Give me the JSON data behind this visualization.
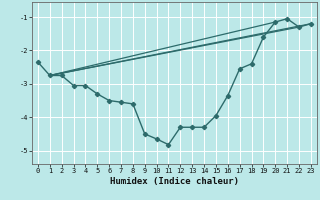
{
  "xlabel": "Humidex (Indice chaleur)",
  "bg_color": "#bce8e8",
  "grid_color": "#ffffff",
  "line_color": "#2d6b6b",
  "xlim": [
    -0.5,
    23.5
  ],
  "ylim": [
    -5.4,
    -0.55
  ],
  "xticks": [
    0,
    1,
    2,
    3,
    4,
    5,
    6,
    7,
    8,
    9,
    10,
    11,
    12,
    13,
    14,
    15,
    16,
    17,
    18,
    19,
    20,
    21,
    22,
    23
  ],
  "yticks": [
    -5,
    -4,
    -3,
    -2,
    -1
  ],
  "curve_x": [
    0,
    1,
    2,
    3,
    4,
    5,
    6,
    7,
    8,
    9,
    10,
    11,
    12,
    13,
    14,
    15,
    16,
    17,
    18,
    19,
    20,
    21,
    22,
    23
  ],
  "curve_y": [
    -2.35,
    -2.75,
    -2.75,
    -3.05,
    -3.05,
    -3.3,
    -3.5,
    -3.55,
    -3.6,
    -4.5,
    -4.65,
    -4.82,
    -4.3,
    -4.3,
    -4.3,
    -3.95,
    -3.35,
    -2.55,
    -2.4,
    -1.6,
    -1.15,
    -1.05,
    -1.3,
    -1.2
  ],
  "line1_x": [
    1,
    23
  ],
  "line1_y": [
    -2.75,
    -1.2
  ],
  "line2_x": [
    1,
    22
  ],
  "line2_y": [
    -2.75,
    -1.3
  ],
  "line3_x": [
    1,
    20
  ],
  "line3_y": [
    -2.75,
    -1.15
  ]
}
